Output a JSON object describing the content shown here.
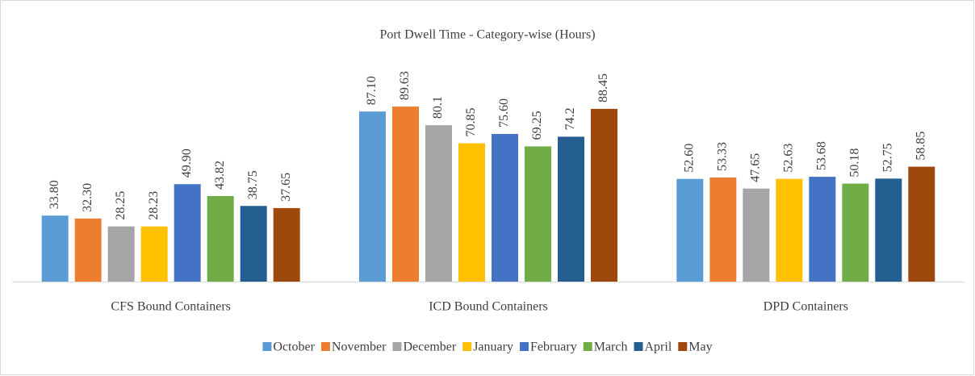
{
  "chart_data": {
    "type": "bar",
    "title": "Port Dwell Time - Category-wise (Hours)",
    "categories": [
      "CFS Bound Containers",
      "ICD Bound Containers",
      "DPD Containers"
    ],
    "series": [
      {
        "name": "October",
        "color": "#5b9bd5",
        "values": [
          33.8,
          87.1,
          52.6
        ],
        "value_labels": [
          "33.80",
          "87.10",
          "52.60"
        ]
      },
      {
        "name": "November",
        "color": "#ed7d31",
        "values": [
          32.3,
          89.63,
          53.33
        ],
        "value_labels": [
          "32.30",
          "89.63",
          "53.33"
        ]
      },
      {
        "name": "December",
        "color": "#a5a5a5",
        "values": [
          28.25,
          80.1,
          47.65
        ],
        "value_labels": [
          "28.25",
          "80.1",
          "47.65"
        ]
      },
      {
        "name": "January",
        "color": "#ffc000",
        "values": [
          28.23,
          70.85,
          52.63
        ],
        "value_labels": [
          "28.23",
          "70.85",
          "52.63"
        ]
      },
      {
        "name": "February",
        "color": "#4472c4",
        "values": [
          49.9,
          75.6,
          53.68
        ],
        "value_labels": [
          "49.90",
          "75.60",
          "53.68"
        ]
      },
      {
        "name": "March",
        "color": "#70ad47",
        "values": [
          43.82,
          69.25,
          50.18
        ],
        "value_labels": [
          "43.82",
          "69.25",
          "50.18"
        ]
      },
      {
        "name": "April",
        "color": "#255e91",
        "values": [
          38.75,
          74.2,
          52.75
        ],
        "value_labels": [
          "38.75",
          "74.2",
          "52.75"
        ]
      },
      {
        "name": "May",
        "color": "#9e480e",
        "values": [
          37.65,
          88.45,
          58.85
        ],
        "value_labels": [
          "37.65",
          "88.45",
          "58.85"
        ]
      }
    ],
    "legend": "bottom"
  }
}
